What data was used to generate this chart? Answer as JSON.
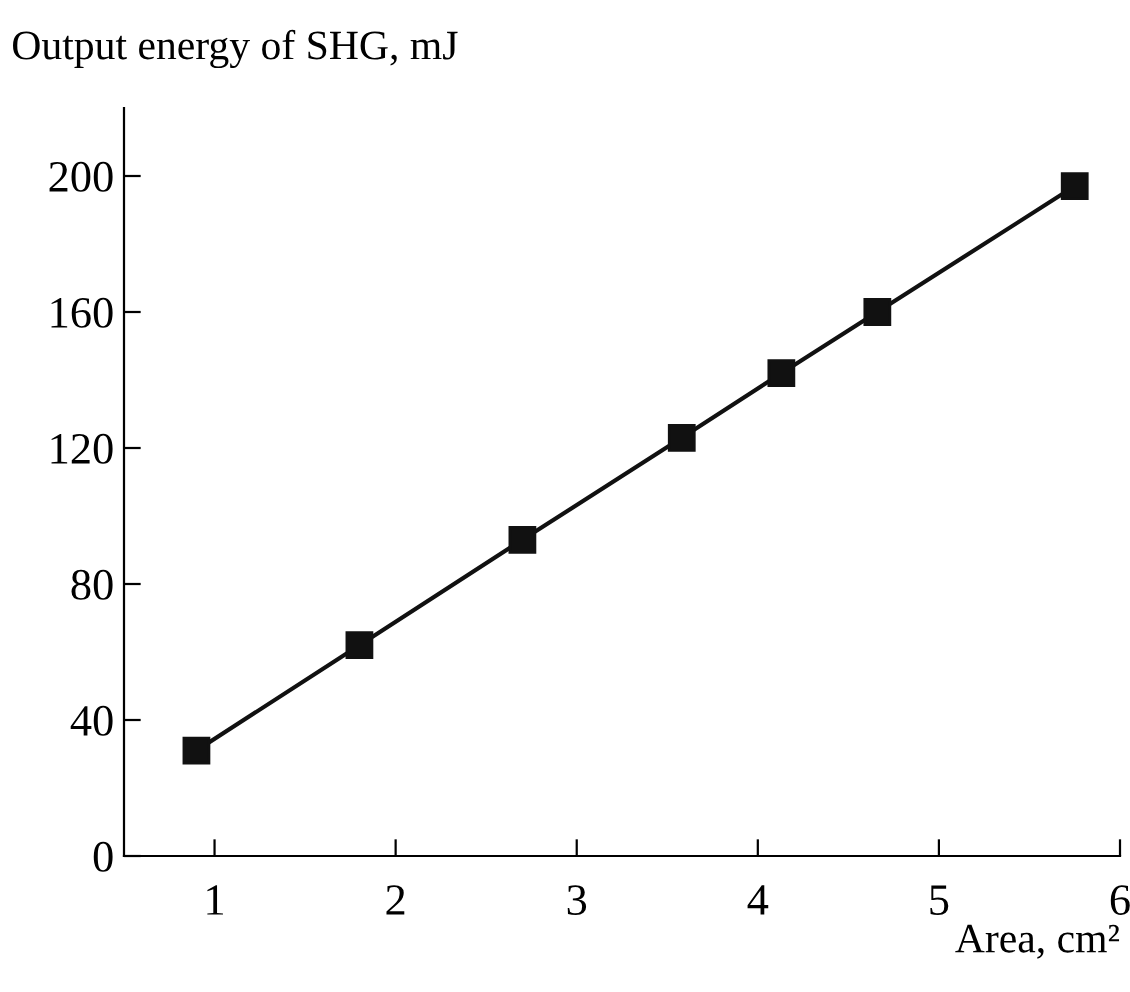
{
  "chart_data": {
    "type": "line",
    "ylabel": "Output energy of SHG, mJ",
    "xlabel": "Area, cm²",
    "x": [
      0.9,
      1.8,
      2.7,
      3.58,
      4.13,
      4.66,
      5.75
    ],
    "series": [
      {
        "color": "#111111",
        "values": [
          31,
          62,
          93,
          123,
          142,
          160,
          197
        ]
      }
    ],
    "marker": "square",
    "line_style": "solid",
    "grid": false,
    "legend": false,
    "xlim": [
      0.5,
      6
    ],
    "xticks": [
      1,
      2,
      3,
      4,
      5,
      6
    ],
    "ylim": [
      0,
      220
    ],
    "yticks": [
      0,
      40,
      80,
      120,
      160,
      200
    ]
  }
}
